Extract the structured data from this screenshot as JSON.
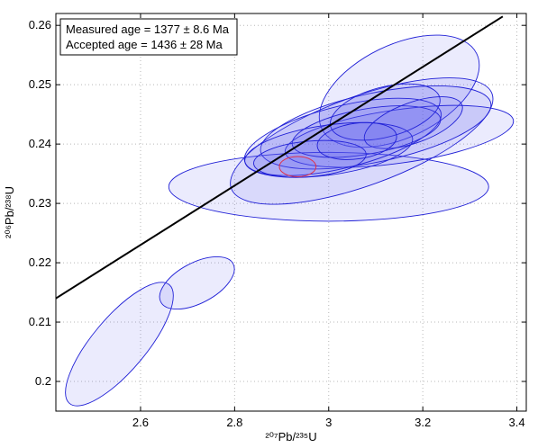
{
  "chart_data": {
    "type": "scatter",
    "title": "",
    "xlabel": "²⁰⁷Pb/²³⁵U",
    "ylabel": "²⁰⁶Pb/²³⁸U",
    "xlim": [
      2.42,
      3.42
    ],
    "ylim": [
      0.195,
      0.262
    ],
    "x_ticks": [
      2.6,
      2.8,
      3.0,
      3.2,
      3.4
    ],
    "y_ticks": [
      0.2,
      0.21,
      0.22,
      0.23,
      0.24,
      0.25,
      0.26
    ],
    "x_tick_labels": [
      "2.6",
      "2.8",
      "3",
      "3.2",
      "3.4"
    ],
    "y_tick_labels": [
      "0.2",
      "0.21",
      "0.22",
      "0.23",
      "0.24",
      "0.25",
      "0.26"
    ],
    "grid": true,
    "legend": {
      "placement": "top-left",
      "lines": [
        "Measured age = 1377 ± 8.6 Ma",
        "Accepted age = 1436 ± 28 Ma"
      ]
    },
    "reference_line": {
      "color": "#000000",
      "points": [
        [
          2.42,
          0.214
        ],
        [
          3.37,
          0.2615
        ]
      ]
    },
    "ellipse_style": {
      "stroke": "#1f1fd6",
      "fill": "#5a5af0",
      "fill_opacity": 0.12
    },
    "highlight_style": {
      "stroke": "#e0304a",
      "fill": "#5a5af0",
      "fill_opacity": 0.12
    },
    "ellipses": [
      {
        "x": 2.555,
        "y": 0.2063,
        "rx": 0.165,
        "ry": 0.0045,
        "angle": -50
      },
      {
        "x": 2.72,
        "y": 0.2166,
        "rx": 0.087,
        "ry": 0.0034,
        "angle": -28
      },
      {
        "x": 3.0,
        "y": 0.2328,
        "rx": 0.34,
        "ry": 0.0058,
        "angle": 0
      },
      {
        "x": 3.15,
        "y": 0.2489,
        "rx": 0.183,
        "ry": 0.0078,
        "angle": -26
      },
      {
        "x": 3.07,
        "y": 0.2405,
        "rx": 0.295,
        "ry": 0.0075,
        "angle": -20
      },
      {
        "x": 3.15,
        "y": 0.2413,
        "rx": 0.245,
        "ry": 0.0045,
        "angle": -8
      },
      {
        "x": 3.1,
        "y": 0.2428,
        "rx": 0.25,
        "ry": 0.0058,
        "angle": -12
      },
      {
        "x": 3.03,
        "y": 0.2412,
        "rx": 0.215,
        "ry": 0.0052,
        "angle": -14
      },
      {
        "x": 3.08,
        "y": 0.2421,
        "rx": 0.16,
        "ry": 0.0038,
        "angle": -10
      },
      {
        "x": 3.12,
        "y": 0.2454,
        "rx": 0.12,
        "ry": 0.0042,
        "angle": -15
      },
      {
        "x": 3.0,
        "y": 0.239,
        "rx": 0.18,
        "ry": 0.0042,
        "angle": -8
      },
      {
        "x": 3.18,
        "y": 0.2436,
        "rx": 0.11,
        "ry": 0.0034,
        "angle": -20
      },
      {
        "x": 2.96,
        "y": 0.2375,
        "rx": 0.12,
        "ry": 0.003,
        "angle": -5
      },
      {
        "x": 3.06,
        "y": 0.2405,
        "rx": 0.085,
        "ry": 0.003,
        "angle": -8
      }
    ],
    "highlight_ellipse": {
      "x": 2.934,
      "y": 0.2362,
      "rx": 0.039,
      "ry": 0.0017,
      "angle": 0
    }
  }
}
